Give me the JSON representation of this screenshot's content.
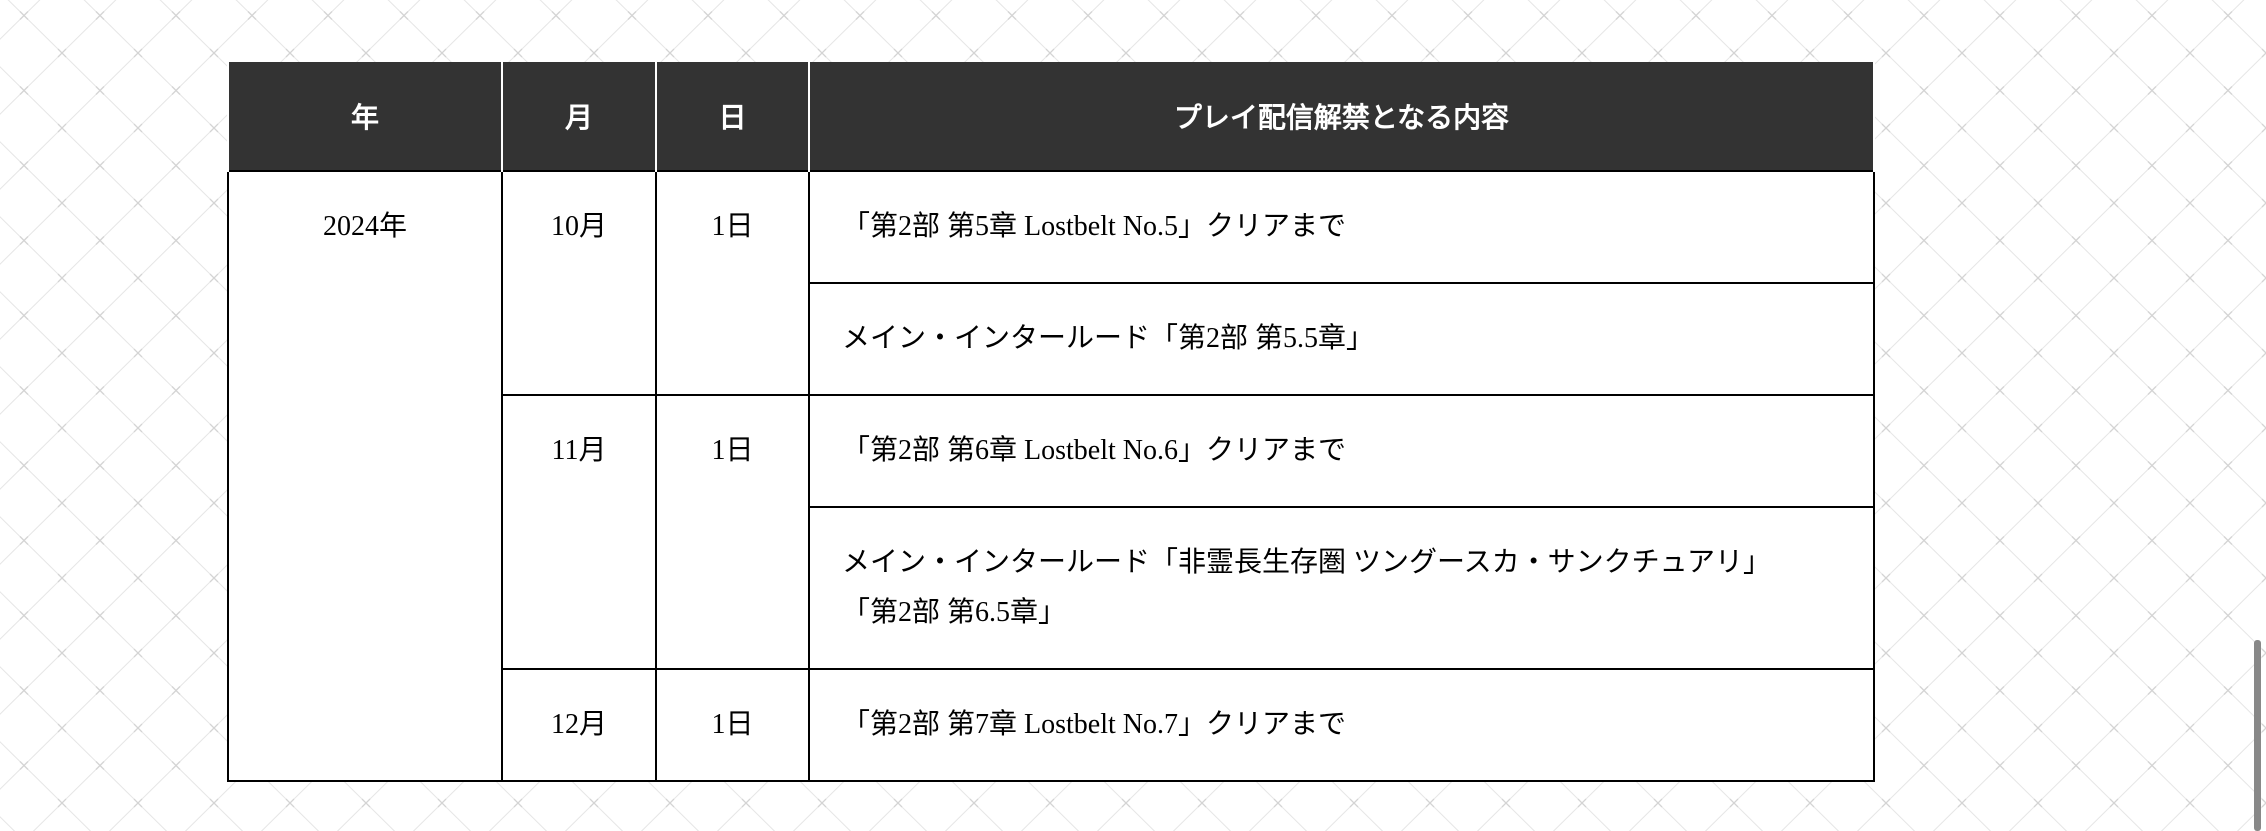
{
  "header": {
    "year": "年",
    "month": "月",
    "day": "日",
    "content": "プレイ配信解禁となる内容"
  },
  "rows": {
    "year": "2024年",
    "groups": [
      {
        "month": "10月",
        "day": "1日",
        "items": [
          "「第2部 第5章 Lostbelt No.5」クリアまで",
          "メイン・インタールード「第2部 第5.5章」"
        ]
      },
      {
        "month": "11月",
        "day": "1日",
        "items": [
          "「第2部 第6章 Lostbelt No.6」クリアまで",
          "メイン・インタールード「非霊長生存圏 ツングースカ・サンクチュアリ」",
          "「第2部 第6.5章」"
        ]
      },
      {
        "month": "12月",
        "day": "1日",
        "items": [
          "「第2部 第7章 Lostbelt No.7」クリアまで"
        ]
      }
    ]
  }
}
